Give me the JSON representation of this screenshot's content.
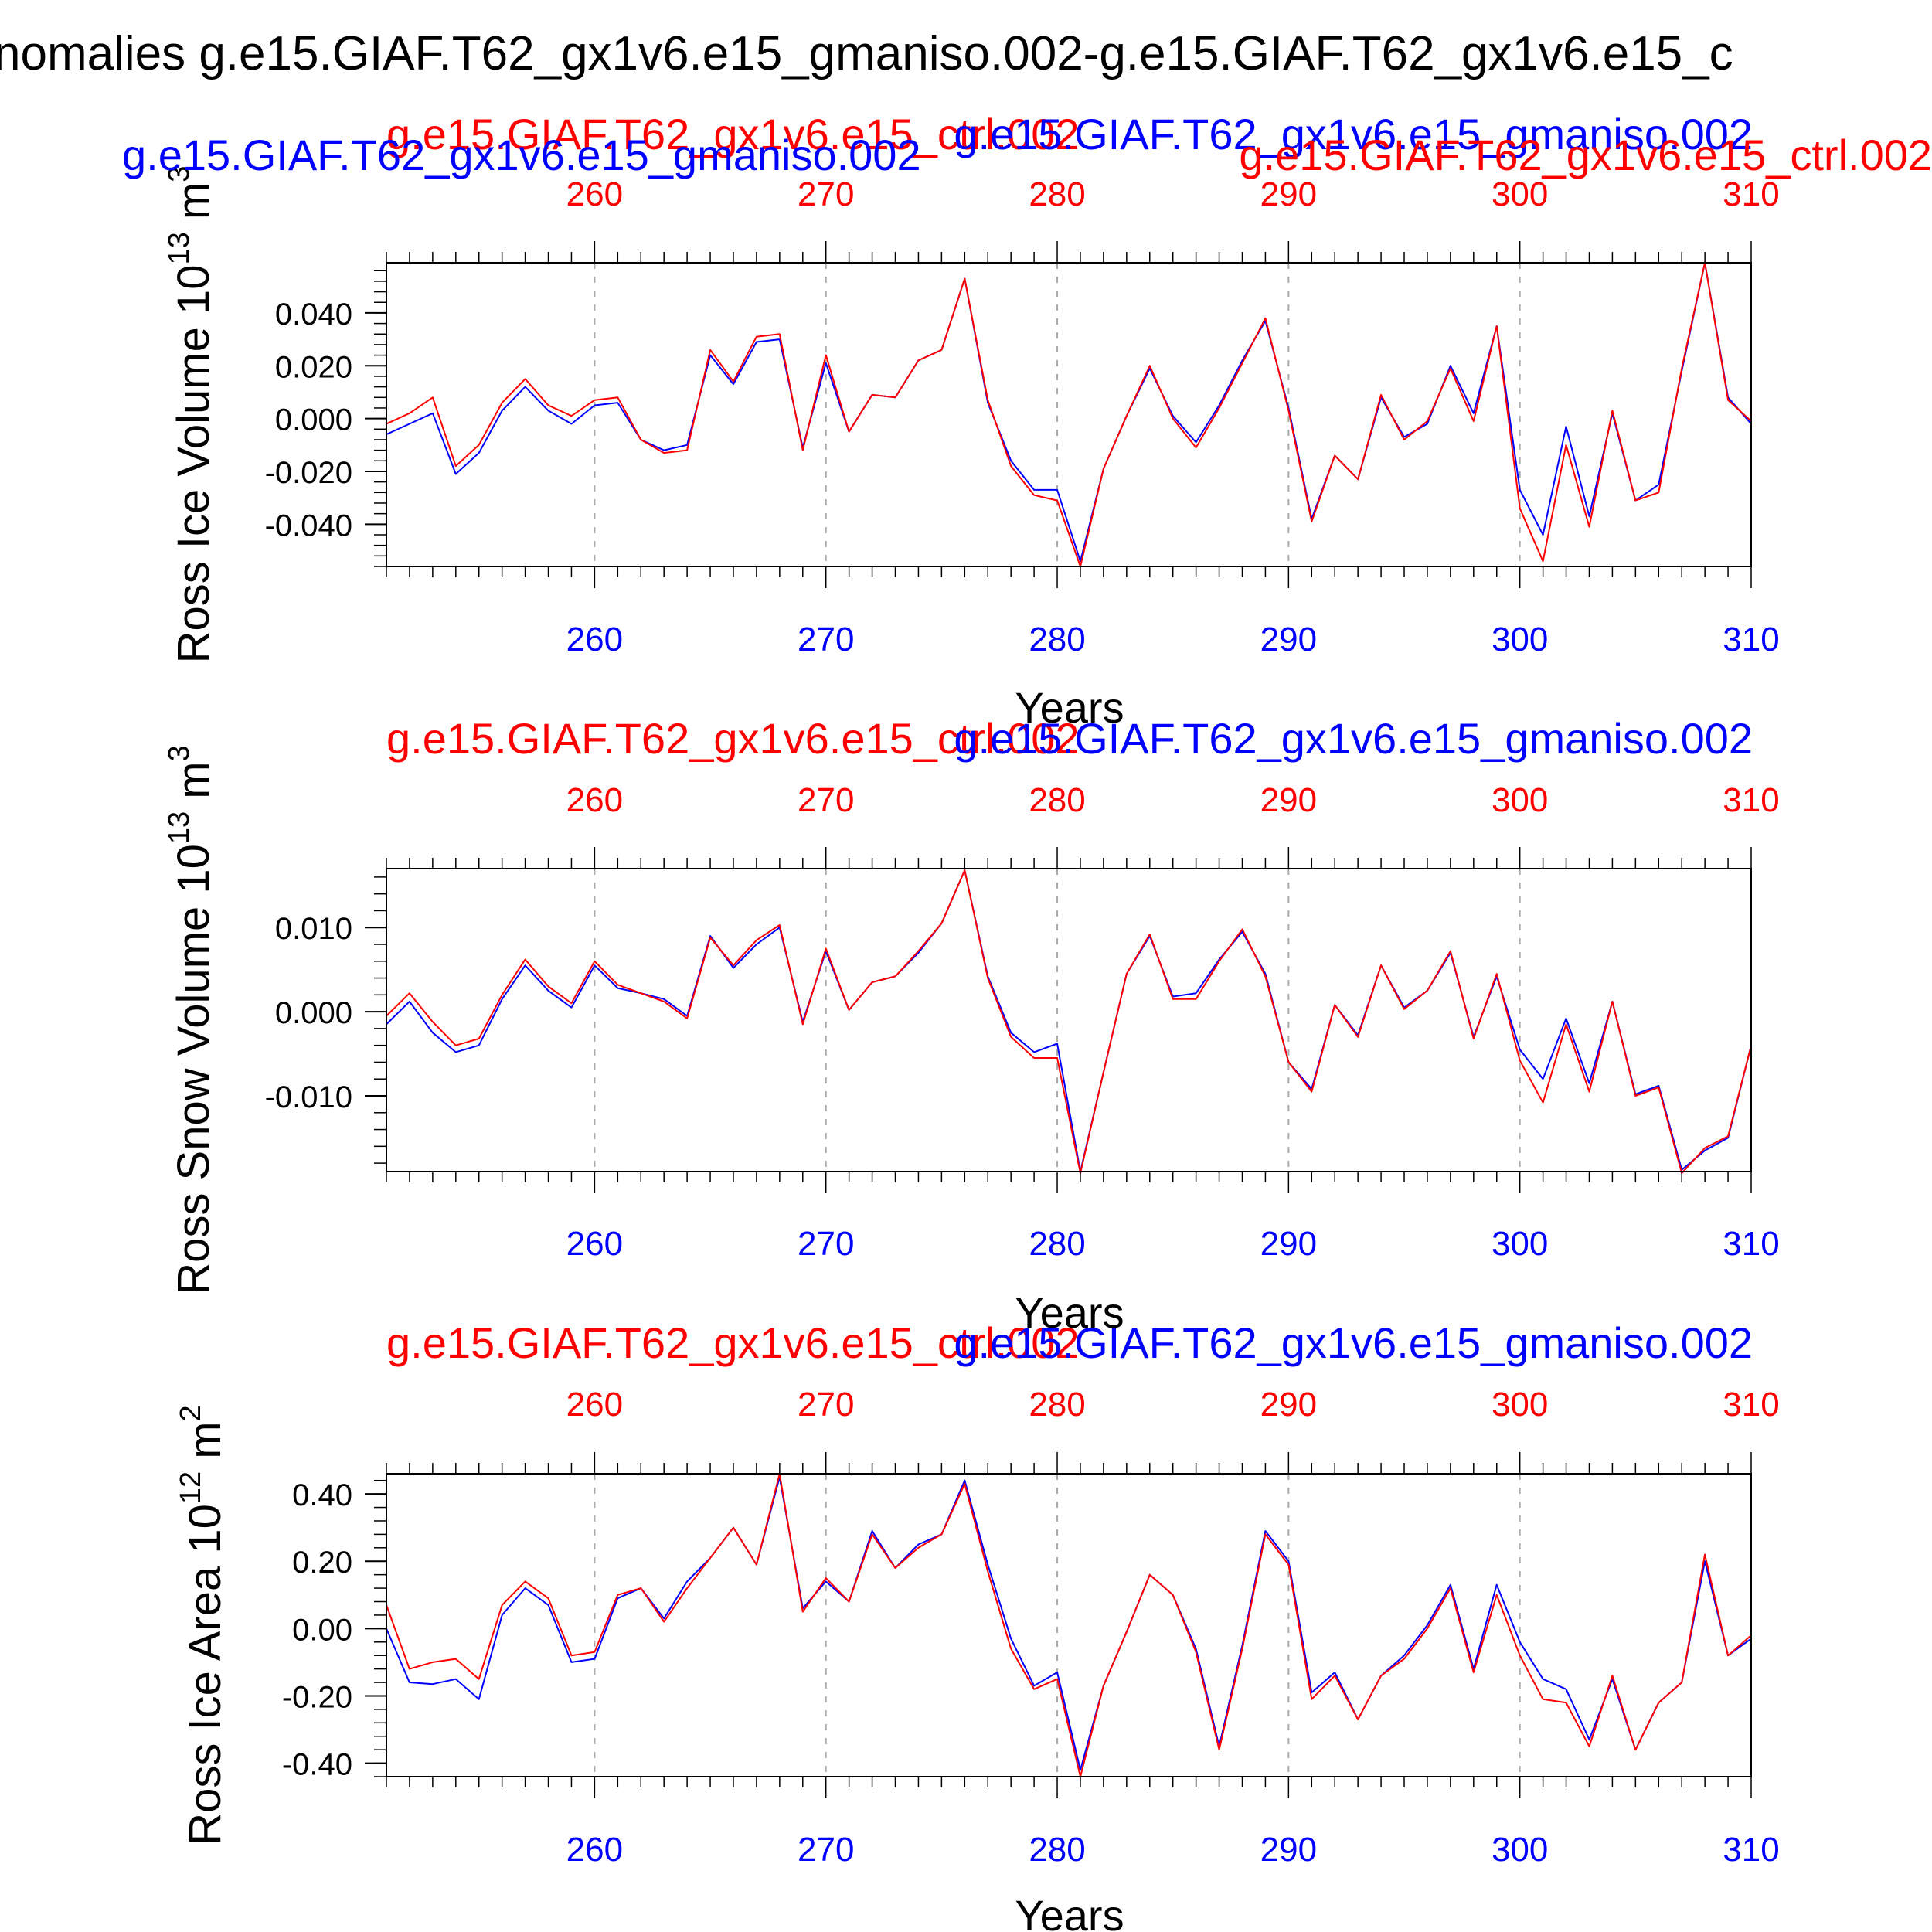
{
  "figure_title": "nomalies g.e15.GIAF.T62_gx1v6.e15_gmaniso.002-g.e15.GIAF.T62_gx1v6.e15_c",
  "colors": {
    "series_a": "#0000ff",
    "series_b": "#ff0000",
    "axis": "#000000",
    "grid": "#aaaaaa"
  },
  "chart_data": [
    {
      "type": "line",
      "ylabel": "Ross Ice Volume 10",
      "ylabel_exp": "13",
      "ylabel_unit": "m",
      "ylabel_unit_exp": "3",
      "xlabel": "Years",
      "xlim": [
        251,
        310
      ],
      "ylim": [
        -0.056,
        0.059
      ],
      "grid": "vertical dashed at major x ticks",
      "x_ticks": [
        "260",
        "270",
        "280",
        "290",
        "300",
        "310"
      ],
      "y_ticks": [
        "0.040",
        "0.020",
        "0.000",
        "-0.020",
        "-0.040"
      ],
      "legend": [
        {
          "text": "g.e15.GIAF.T62_gx1v6.e15_ctrl.002",
          "color": "#ff0000",
          "placement": "top-left"
        },
        {
          "text": "g.e15.GIAF.T62_gx1v6.e15_gmaniso.002",
          "color": "#0000ff",
          "placement": "top-right"
        },
        {
          "text": "g.e15.GIAF.T62_gx1v6.e15_gmaniso.002",
          "color": "#0000ff",
          "placement": "upper-left"
        },
        {
          "text": "g.e15.GIAF.T62_gx1v6.e15_ctrl.002",
          "color": "#ff0000",
          "placement": "upper-right"
        }
      ],
      "series": [
        {
          "name": "g.e15.GIAF.T62_gx1v6.e15_gmaniso.002",
          "color": "#0000ff",
          "values": [
            -0.006,
            -0.002,
            0.002,
            -0.021,
            -0.013,
            0.003,
            0.012,
            0.003,
            -0.002,
            0.005,
            0.006,
            -0.008,
            -0.012,
            -0.01,
            0.024,
            0.013,
            0.029,
            0.03,
            -0.011,
            0.021,
            -0.005,
            0.009,
            0.008,
            0.022,
            0.026,
            0.053,
            0.006,
            -0.016,
            -0.027,
            -0.027,
            -0.054,
            -0.019,
            0.001,
            0.019,
            0.001,
            -0.009,
            0.005,
            0.022,
            0.037,
            0.004,
            -0.038,
            -0.014,
            -0.023,
            0.008,
            -0.007,
            -0.002,
            0.02,
            0.002,
            0.035,
            -0.027,
            -0.044,
            -0.003,
            -0.037,
            0.002,
            -0.031,
            -0.025,
            0.018,
            0.059,
            0.008,
            -0.002
          ]
        },
        {
          "name": "g.e15.GIAF.T62_gx1v6.e15_ctrl.002",
          "color": "#ff0000",
          "values": [
            -0.002,
            0.002,
            0.008,
            -0.018,
            -0.01,
            0.006,
            0.015,
            0.005,
            0.001,
            0.007,
            0.008,
            -0.008,
            -0.013,
            -0.012,
            0.026,
            0.014,
            0.031,
            0.032,
            -0.012,
            0.024,
            -0.005,
            0.009,
            0.008,
            0.022,
            0.026,
            0.053,
            0.007,
            -0.018,
            -0.029,
            -0.031,
            -0.056,
            -0.019,
            0.001,
            0.02,
            0.0,
            -0.011,
            0.004,
            0.021,
            0.038,
            0.003,
            -0.039,
            -0.014,
            -0.023,
            0.009,
            -0.008,
            -0.001,
            0.019,
            -0.001,
            0.035,
            -0.034,
            -0.054,
            -0.01,
            -0.041,
            0.003,
            -0.031,
            -0.028,
            0.019,
            0.059,
            0.007,
            -0.001
          ]
        }
      ]
    },
    {
      "type": "line",
      "ylabel": "Ross Snow Volume 10",
      "ylabel_exp": "13",
      "ylabel_unit": "m",
      "ylabel_unit_exp": "3",
      "xlabel": "Years",
      "xlim": [
        251,
        310
      ],
      "ylim": [
        -0.019,
        0.017
      ],
      "grid": "vertical dashed at major x ticks",
      "x_ticks": [
        "260",
        "270",
        "280",
        "290",
        "300",
        "310"
      ],
      "y_ticks": [
        "0.010",
        "0.000",
        "-0.010"
      ],
      "legend": [
        {
          "text": "g.e15.GIAF.T62_gx1v6.e15_ctrl.002",
          "color": "#ff0000",
          "placement": "top-left"
        },
        {
          "text": "g.e15.GIAF.T62_gx1v6.e15_gmaniso.002",
          "color": "#0000ff",
          "placement": "top-right"
        }
      ],
      "series": [
        {
          "name": "g.e15.GIAF.T62_gx1v6.e15_gmaniso.002",
          "color": "#0000ff",
          "values": [
            -0.0015,
            0.0012,
            -0.0025,
            -0.0048,
            -0.004,
            0.0015,
            0.0055,
            0.0025,
            0.0005,
            0.0055,
            0.0028,
            0.0022,
            0.0015,
            -0.0005,
            0.009,
            0.0052,
            0.008,
            0.01,
            -0.0012,
            0.0072,
            0.0002,
            0.0035,
            0.0042,
            0.007,
            0.0105,
            0.0168,
            0.0042,
            -0.0025,
            -0.0048,
            -0.0038,
            -0.019,
            -0.0072,
            0.0045,
            0.009,
            0.0018,
            0.0022,
            0.0062,
            0.0095,
            0.0045,
            -0.006,
            -0.0092,
            0.0008,
            -0.0028,
            0.0055,
            0.0005,
            0.0025,
            0.007,
            -0.003,
            0.0042,
            -0.0045,
            -0.008,
            -0.0008,
            -0.0085,
            0.0012,
            -0.0098,
            -0.0088,
            -0.0188,
            -0.0165,
            -0.015,
            -0.004
          ]
        },
        {
          "name": "g.e15.GIAF.T62_gx1v6.e15_ctrl.002",
          "color": "#ff0000",
          "values": [
            -0.0005,
            0.0022,
            -0.0012,
            -0.004,
            -0.0032,
            0.002,
            0.0062,
            0.003,
            0.001,
            0.006,
            0.0032,
            0.0022,
            0.0012,
            -0.0008,
            0.0088,
            0.0055,
            0.0085,
            0.0103,
            -0.0015,
            0.0075,
            0.0002,
            0.0035,
            0.0042,
            0.0072,
            0.0105,
            0.0168,
            0.004,
            -0.003,
            -0.0055,
            -0.0055,
            -0.0192,
            -0.0072,
            0.0045,
            0.0092,
            0.0015,
            0.0015,
            0.006,
            0.0098,
            0.0042,
            -0.006,
            -0.0095,
            0.0008,
            -0.003,
            0.0055,
            0.0003,
            0.0025,
            0.0072,
            -0.0032,
            0.0045,
            -0.0058,
            -0.0108,
            -0.0015,
            -0.0095,
            0.0012,
            -0.01,
            -0.009,
            -0.0192,
            -0.0162,
            -0.0148,
            -0.004
          ]
        }
      ]
    },
    {
      "type": "line",
      "ylabel": "Ross Ice Area 10",
      "ylabel_exp": "12",
      "ylabel_unit": "m",
      "ylabel_unit_exp": "2",
      "xlabel": "Years",
      "xlim": [
        251,
        310
      ],
      "ylim": [
        -0.44,
        0.46
      ],
      "grid": "vertical dashed at major x ticks",
      "x_ticks": [
        "260",
        "270",
        "280",
        "290",
        "300",
        "310"
      ],
      "y_ticks": [
        "0.40",
        "0.20",
        "0.00",
        "-0.20",
        "-0.40"
      ],
      "legend": [
        {
          "text": "g.e15.GIAF.T62_gx1v6.e15_ctrl.002",
          "color": "#ff0000",
          "placement": "top-left"
        },
        {
          "text": "g.e15.GIAF.T62_gx1v6.e15_gmaniso.002",
          "color": "#0000ff",
          "placement": "top-right"
        }
      ],
      "series": [
        {
          "name": "g.e15.GIAF.T62_gx1v6.e15_gmaniso.002",
          "color": "#0000ff",
          "values": [
            0.0,
            -0.16,
            -0.165,
            -0.15,
            -0.21,
            0.04,
            0.12,
            0.07,
            -0.1,
            -0.09,
            0.09,
            0.12,
            0.03,
            0.14,
            0.21,
            0.3,
            0.19,
            0.45,
            0.06,
            0.14,
            0.08,
            0.29,
            0.18,
            0.25,
            0.28,
            0.44,
            0.19,
            -0.03,
            -0.17,
            -0.13,
            -0.42,
            -0.17,
            -0.01,
            0.16,
            0.1,
            -0.06,
            -0.35,
            -0.05,
            0.29,
            0.2,
            -0.19,
            -0.13,
            -0.27,
            -0.14,
            -0.08,
            0.01,
            0.13,
            -0.12,
            0.13,
            -0.04,
            -0.15,
            -0.18,
            -0.33,
            -0.15,
            -0.36,
            -0.22,
            -0.16,
            0.2,
            -0.08,
            -0.03
          ]
        },
        {
          "name": "g.e15.GIAF.T62_gx1v6.e15_ctrl.002",
          "color": "#ff0000",
          "values": [
            0.07,
            -0.12,
            -0.1,
            -0.09,
            -0.15,
            0.07,
            0.14,
            0.09,
            -0.08,
            -0.07,
            0.1,
            0.12,
            0.02,
            0.12,
            0.21,
            0.3,
            0.19,
            0.46,
            0.05,
            0.15,
            0.08,
            0.28,
            0.18,
            0.24,
            0.28,
            0.43,
            0.17,
            -0.06,
            -0.18,
            -0.15,
            -0.44,
            -0.17,
            -0.01,
            0.16,
            0.1,
            -0.07,
            -0.36,
            -0.06,
            0.28,
            0.19,
            -0.21,
            -0.14,
            -0.27,
            -0.14,
            -0.09,
            0.0,
            0.12,
            -0.13,
            0.1,
            -0.08,
            -0.21,
            -0.22,
            -0.35,
            -0.14,
            -0.36,
            -0.22,
            -0.16,
            0.22,
            -0.08,
            -0.02
          ]
        }
      ]
    }
  ]
}
